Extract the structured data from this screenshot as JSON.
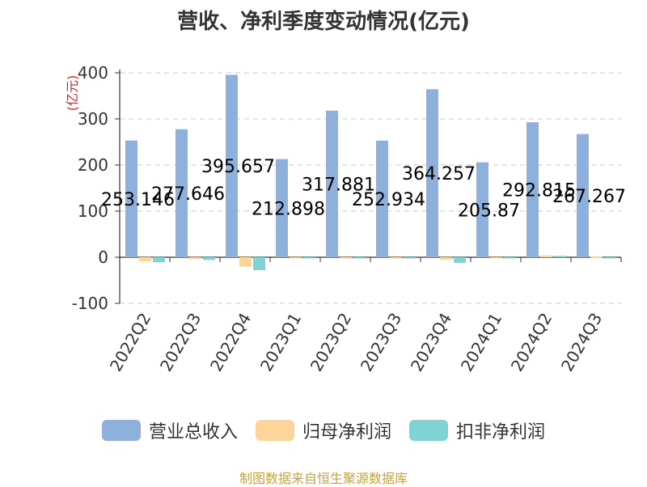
{
  "chart_data": {
    "type": "bar",
    "title": "营收、净利季度变动情况(亿元)",
    "ylabel": "(亿元)",
    "ylim": [
      -100,
      400
    ],
    "yticks": [
      400,
      300,
      200,
      100,
      0,
      -100
    ],
    "grid": true,
    "legend_position": "bottom",
    "categories": [
      "2022Q2",
      "2022Q3",
      "2022Q4",
      "2023Q1",
      "2023Q2",
      "2023Q3",
      "2023Q4",
      "2024Q1",
      "2024Q2",
      "2024Q3"
    ],
    "series": [
      {
        "name": "营业总收入",
        "color": "#8eb0dc",
        "values": [
          253.146,
          277.646,
          395.657,
          212.898,
          317.881,
          252.934,
          364.257,
          205.87,
          292.815,
          267.267
        ],
        "labels": [
          "253.146",
          "277.646",
          "395.657",
          "212.898",
          "317.881",
          "252.934",
          "364.257",
          "205.87",
          "292.815",
          "267.267"
        ]
      },
      {
        "name": "归母净利润",
        "color": "#fdd49a",
        "values": [
          -9,
          -4,
          -20,
          -2,
          -1,
          -1,
          -5,
          -1,
          4,
          1
        ]
      },
      {
        "name": "扣非净利润",
        "color": "#7fd3d3",
        "values": [
          -11,
          -6,
          -28,
          -2,
          -1,
          -1,
          -12,
          -1,
          3,
          0
        ]
      }
    ]
  },
  "source": "制图数据来自恒生聚源数据库"
}
